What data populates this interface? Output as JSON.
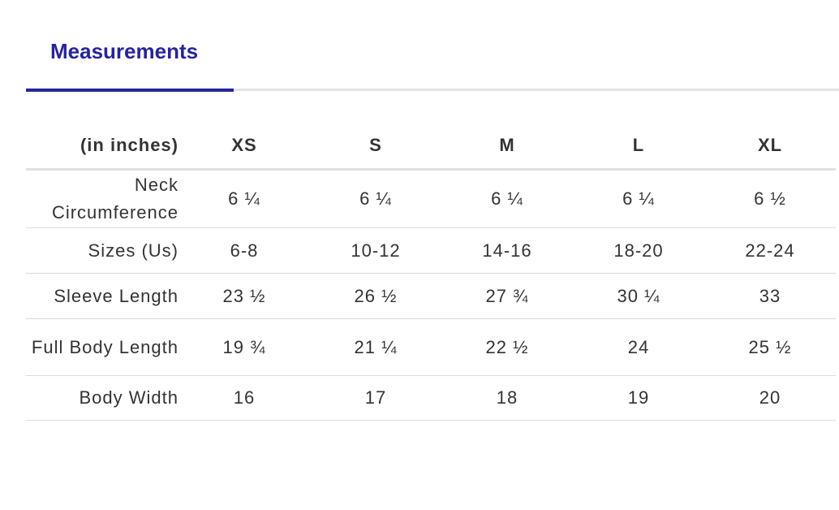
{
  "header": {
    "tab": "Measurements"
  },
  "table": {
    "columns": [
      "(in inches)",
      "XS",
      "S",
      "M",
      "L",
      "XL"
    ],
    "rows": [
      [
        "Neck Circumference",
        "6 ¼",
        "6 ¼",
        "6 ¼",
        "6 ¼",
        "6 ½"
      ],
      [
        "Sizes (Us)",
        "6-8",
        "10-12",
        "14-16",
        "18-20",
        "22-24"
      ],
      [
        "Sleeve Length",
        "23 ½",
        "26 ½",
        "27 ¾",
        "30 ¼",
        "33"
      ],
      [
        "Full Body Length",
        "19 ¾",
        "21 ¼",
        "22 ½",
        "24",
        "25 ½"
      ],
      [
        "Body Width",
        "16",
        "17",
        "18",
        "19",
        "20"
      ]
    ]
  }
}
